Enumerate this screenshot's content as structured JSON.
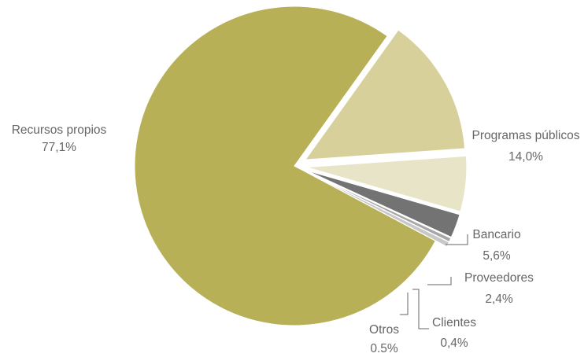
{
  "chart_data": {
    "type": "pie",
    "title": "",
    "slices": [
      {
        "label": "Recursos propios",
        "value": 77.1,
        "display": "77,1%",
        "color": "#b7b057",
        "exploded": false
      },
      {
        "label": "Programas públicos",
        "value": 14.0,
        "display": "14,0%",
        "color": "#d7d09b",
        "exploded": true
      },
      {
        "label": "Bancario",
        "value": 5.6,
        "display": "5,6%",
        "color": "#e8e4c8",
        "exploded": true
      },
      {
        "label": "Proveedores",
        "value": 2.4,
        "display": "2,4%",
        "color": "#737373",
        "exploded": true
      },
      {
        "label": "Clientes",
        "value": 0.4,
        "display": "0,4%",
        "color": "#a6a6a6",
        "exploded": true
      },
      {
        "label": "Otros",
        "value": 0.5,
        "display": "0.5%",
        "color": "#c8c8c8",
        "exploded": true
      }
    ],
    "legend": "none"
  }
}
